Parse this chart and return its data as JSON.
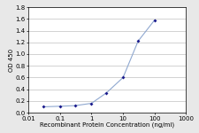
{
  "x": [
    0.03,
    0.1,
    0.3,
    1,
    3,
    10,
    30,
    100
  ],
  "y": [
    0.1,
    0.11,
    0.12,
    0.16,
    0.34,
    0.6,
    1.22,
    1.58
  ],
  "xlabel": "Recombinant Protein Concentration (ng/ml)",
  "ylabel": "OD 450",
  "ylim": [
    0,
    1.8
  ],
  "yticks": [
    0,
    0.2,
    0.4,
    0.6,
    0.8,
    1.0,
    1.2,
    1.4,
    1.6,
    1.8
  ],
  "xtick_labels": [
    "0.01",
    "0.1",
    "1",
    "10",
    "100",
    "1000"
  ],
  "xtick_vals": [
    0.01,
    0.1,
    1,
    10,
    100,
    1000
  ],
  "line_color": "#8fa8d0",
  "marker_color": "#1a1a8c",
  "bg_color": "#e8e8e8",
  "plot_bg": "#ffffff",
  "axis_fontsize": 5,
  "tick_fontsize": 5,
  "ylabel_fontsize": 5,
  "marker_size": 4
}
